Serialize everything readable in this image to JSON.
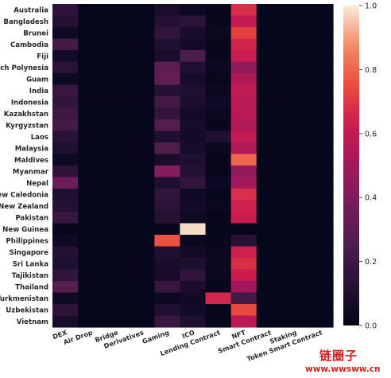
{
  "chart_data": {
    "type": "heatmap",
    "title": "",
    "xlabel": "",
    "ylabel": "",
    "rows": [
      "Australia",
      "Bangladesh",
      "Brunei",
      "Cambodia",
      "Fiji",
      "French Polynesia",
      "Guam",
      "India",
      "Indonesia",
      "Kazakhstan",
      "Kyrgyzstan",
      "Laos",
      "Malaysia",
      "Maldives",
      "Myanmar",
      "Nepal",
      "New Caledonia",
      "New Zealand",
      "Pakistan",
      "Papua New Guinea",
      "Philippines",
      "Singapore",
      "Sri Lanka",
      "Tajikistan",
      "Thailand",
      "Turkmenistan",
      "Uzbekistan",
      "Vietnam"
    ],
    "columns": [
      "DEX",
      "Air Drop",
      "Bridge",
      "Derivatives",
      "Gaming",
      "ICO",
      "Lending Contract",
      "NFT",
      "Smart Contract",
      "Staking",
      "Token Smart Contract"
    ],
    "values": [
      [
        0.15,
        0.01,
        0.01,
        0.01,
        0.08,
        0.04,
        0.02,
        0.68,
        0.01,
        0.01,
        0.01
      ],
      [
        0.12,
        0.01,
        0.01,
        0.01,
        0.12,
        0.14,
        0.02,
        0.6,
        0.01,
        0.01,
        0.01
      ],
      [
        0.05,
        0.01,
        0.01,
        0.01,
        0.16,
        0.08,
        0.03,
        0.72,
        0.01,
        0.01,
        0.01
      ],
      [
        0.22,
        0.01,
        0.01,
        0.02,
        0.1,
        0.06,
        0.02,
        0.65,
        0.01,
        0.01,
        0.01
      ],
      [
        0.06,
        0.01,
        0.01,
        0.01,
        0.08,
        0.24,
        0.02,
        0.62,
        0.01,
        0.01,
        0.01
      ],
      [
        0.14,
        0.01,
        0.01,
        0.01,
        0.3,
        0.1,
        0.04,
        0.45,
        0.01,
        0.01,
        0.01
      ],
      [
        0.04,
        0.01,
        0.01,
        0.01,
        0.32,
        0.07,
        0.02,
        0.55,
        0.01,
        0.01,
        0.01
      ],
      [
        0.18,
        0.01,
        0.01,
        0.01,
        0.12,
        0.1,
        0.03,
        0.6,
        0.01,
        0.01,
        0.01
      ],
      [
        0.16,
        0.02,
        0.02,
        0.02,
        0.22,
        0.09,
        0.05,
        0.58,
        0.02,
        0.01,
        0.01
      ],
      [
        0.2,
        0.01,
        0.01,
        0.01,
        0.16,
        0.06,
        0.03,
        0.57,
        0.01,
        0.01,
        0.01
      ],
      [
        0.22,
        0.01,
        0.01,
        0.01,
        0.27,
        0.07,
        0.02,
        0.55,
        0.01,
        0.01,
        0.01
      ],
      [
        0.13,
        0.01,
        0.01,
        0.02,
        0.1,
        0.06,
        0.1,
        0.6,
        0.01,
        0.01,
        0.01
      ],
      [
        0.1,
        0.01,
        0.01,
        0.02,
        0.26,
        0.07,
        0.03,
        0.55,
        0.01,
        0.01,
        0.01
      ],
      [
        0.04,
        0.01,
        0.01,
        0.01,
        0.08,
        0.1,
        0.02,
        0.8,
        0.01,
        0.01,
        0.01
      ],
      [
        0.15,
        0.01,
        0.01,
        0.01,
        0.42,
        0.12,
        0.02,
        0.45,
        0.01,
        0.01,
        0.01
      ],
      [
        0.35,
        0.01,
        0.01,
        0.01,
        0.1,
        0.16,
        0.04,
        0.5,
        0.01,
        0.01,
        0.01
      ],
      [
        0.1,
        0.01,
        0.01,
        0.01,
        0.16,
        0.05,
        0.02,
        0.68,
        0.01,
        0.01,
        0.01
      ],
      [
        0.12,
        0.01,
        0.01,
        0.01,
        0.14,
        0.06,
        0.03,
        0.64,
        0.01,
        0.01,
        0.01
      ],
      [
        0.18,
        0.01,
        0.01,
        0.01,
        0.12,
        0.05,
        0.02,
        0.63,
        0.01,
        0.01,
        0.01
      ],
      [
        0.02,
        0.01,
        0.01,
        0.01,
        0.02,
        0.98,
        0.01,
        0.02,
        0.01,
        0.01,
        0.01
      ],
      [
        0.05,
        0.01,
        0.01,
        0.01,
        0.76,
        0.03,
        0.02,
        0.13,
        0.01,
        0.01,
        0.01
      ],
      [
        0.12,
        0.01,
        0.01,
        0.01,
        0.1,
        0.06,
        0.03,
        0.64,
        0.01,
        0.01,
        0.01
      ],
      [
        0.1,
        0.01,
        0.01,
        0.02,
        0.08,
        0.1,
        0.03,
        0.68,
        0.01,
        0.01,
        0.01
      ],
      [
        0.16,
        0.01,
        0.01,
        0.02,
        0.08,
        0.16,
        0.03,
        0.63,
        0.01,
        0.01,
        0.01
      ],
      [
        0.28,
        0.01,
        0.01,
        0.01,
        0.18,
        0.08,
        0.02,
        0.5,
        0.01,
        0.01,
        0.01
      ],
      [
        0.05,
        0.01,
        0.01,
        0.01,
        0.04,
        0.05,
        0.66,
        0.22,
        0.01,
        0.01,
        0.01
      ],
      [
        0.15,
        0.01,
        0.01,
        0.01,
        0.1,
        0.06,
        0.02,
        0.74,
        0.01,
        0.01,
        0.01
      ],
      [
        0.08,
        0.01,
        0.01,
        0.01,
        0.18,
        0.1,
        0.02,
        0.58,
        0.01,
        0.01,
        0.01
      ]
    ],
    "colorbar": {
      "colormap": "rocket",
      "min": 0.0,
      "max": 1.0,
      "ticks": [
        "0.0",
        "0.2",
        "0.4",
        "0.6",
        "0.8",
        "1.0"
      ]
    }
  },
  "watermark": {
    "text": "链圈子",
    "url": "www.wwsww.cn"
  }
}
